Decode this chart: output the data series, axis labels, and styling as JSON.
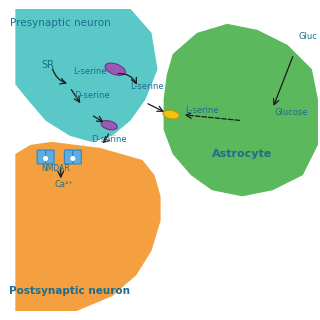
{
  "presynaptic_color": "#5BC8C8",
  "postsynaptic_color": "#F4A040",
  "astrocyte_color": "#5CB85C",
  "background_color": "#FFFFFF",
  "presynaptic_label": "Presynaptic neuron",
  "postsynaptic_label": "Postsynaptic neuron",
  "astrocyte_label": "Astrocyte",
  "sr_label": "SR",
  "l_serine_label": "L-serine",
  "d_serine_label": "D-serine",
  "glucose_label": "Glucose",
  "nmdar_label": "NMDAR",
  "ca_label": "Ca²⁺",
  "gluc_label": "Gluc",
  "text_color": "#1A6E8E",
  "arrow_color": "#1A1A1A",
  "vesicle_purple_color": "#9B59B6",
  "vesicle_yellow_color": "#F1C40F",
  "receptor_color": "#5DADE2",
  "receptor_dark": "#2E86C1"
}
